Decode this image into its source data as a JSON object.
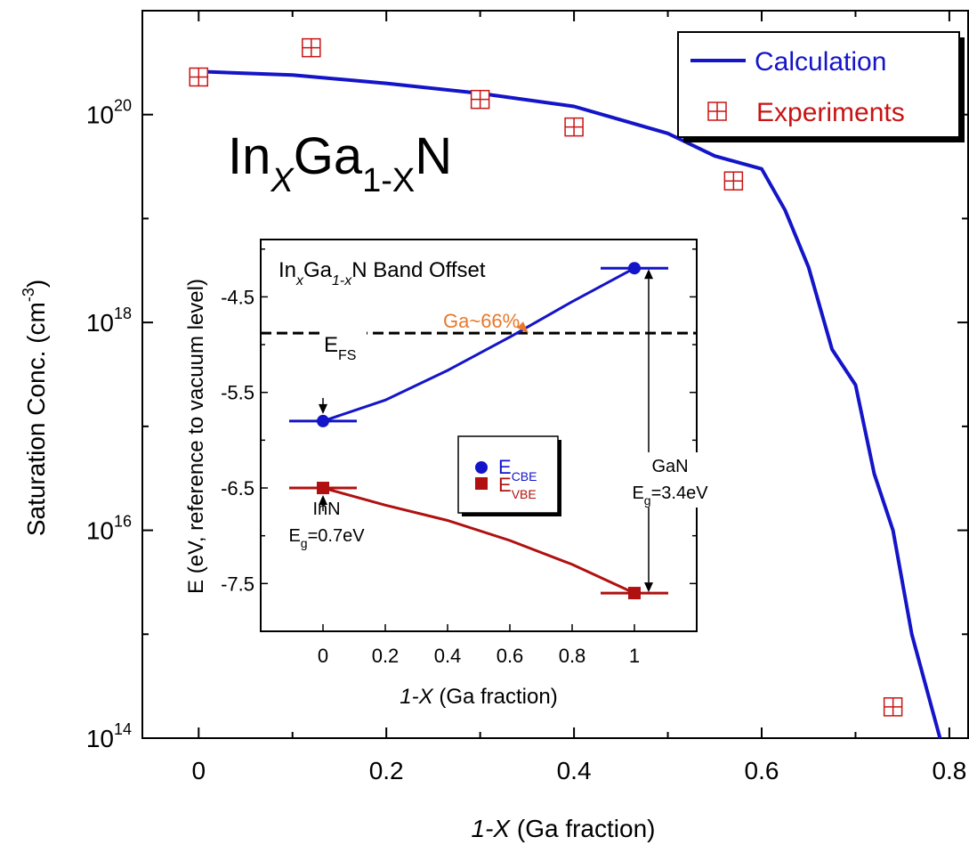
{
  "chart_data": [
    {
      "type": "line",
      "title_main": "In",
      "title_sub1": "X",
      "title_mid": "Ga",
      "title_sub2": "1-X",
      "title_end": "N",
      "xlabel_italic": "1-X",
      "xlabel_rest": " (Ga fraction)",
      "ylabel_main": "Saturation Conc. (cm",
      "ylabel_sup": "-3",
      "ylabel_close": ")",
      "x_scale": "linear",
      "y_scale": "log",
      "xlim": [
        -0.06,
        0.82
      ],
      "ylim": [
        100000000000000.0,
        1e+21
      ],
      "x_ticks": [
        {
          "v": 0,
          "label": "0"
        },
        {
          "v": 0.2,
          "label": "0.2"
        },
        {
          "v": 0.4,
          "label": "0.4"
        },
        {
          "v": 0.6,
          "label": "0.6"
        },
        {
          "v": 0.8,
          "label": "0.8"
        }
      ],
      "y_ticks": [
        {
          "v": 100000000000000.0,
          "base": "10",
          "exp": "14"
        },
        {
          "v": 1e+16,
          "base": "10",
          "exp": "16"
        },
        {
          "v": 1e+18,
          "base": "10",
          "exp": "18"
        },
        {
          "v": 1e+20,
          "base": "10",
          "exp": "20"
        }
      ],
      "legend_position": "top-right",
      "series": [
        {
          "name": "Calculation",
          "style": "line",
          "color": "#1414c8",
          "x": [
            0,
            0.1,
            0.2,
            0.3,
            0.4,
            0.5,
            0.55,
            0.6,
            0.625,
            0.65,
            0.675,
            0.7,
            0.72,
            0.74,
            0.76,
            0.79
          ],
          "y": [
            2.6e+20,
            2.4e+20,
            2e+20,
            1.6e+20,
            1.2e+20,
            6.6e+19,
            4e+19,
            3e+19,
            1.2e+19,
            3.4e+18,
            5.5e+17,
            2.5e+17,
            3.5e+16,
            1e+16,
            1000000000000000.0,
            100000000000000.0
          ]
        },
        {
          "name": "Experiments",
          "style": "marker",
          "color": "#c81414",
          "x": [
            0.0,
            0.12,
            0.3,
            0.4,
            0.57,
            0.74
          ],
          "y": [
            2.3e+20,
            4.4e+20,
            1.4e+20,
            7.6e+19,
            2.3e+19,
            200000000000000.0
          ]
        }
      ]
    },
    {
      "type": "line",
      "title_pre": "In",
      "title_sub1": "x",
      "title_mid": "Ga",
      "title_sub2": "1-x",
      "title_post": "N Band Offset",
      "xlabel_italic": "1-X",
      "xlabel_rest": " (Ga fraction)",
      "ylabel": "E (eV, reference to vacuum level)",
      "x_scale": "linear",
      "xlim": [
        -0.2,
        1.2
      ],
      "ylim": [
        -8.0,
        -3.9
      ],
      "x_ticks": [
        {
          "v": 0,
          "label": "0"
        },
        {
          "v": 0.2,
          "label": "0.2"
        },
        {
          "v": 0.4,
          "label": "0.4"
        },
        {
          "v": 0.6,
          "label": "0.6"
        },
        {
          "v": 0.8,
          "label": "0.8"
        },
        {
          "v": 1.0,
          "label": "1"
        }
      ],
      "y_ticks": [
        {
          "v": -4.5,
          "label": "-4.5"
        },
        {
          "v": -5.5,
          "label": "-5.5"
        },
        {
          "v": -6.5,
          "label": "-6.5"
        },
        {
          "v": -7.5,
          "label": "-7.5"
        }
      ],
      "series": [
        {
          "name": "E_CBE",
          "legend_main": "E",
          "legend_sub": "CBE",
          "color": "#1414c8",
          "x": [
            0,
            0.2,
            0.4,
            0.6,
            0.8,
            1.0
          ],
          "y": [
            -5.8,
            -5.58,
            -5.27,
            -4.92,
            -4.55,
            -4.2
          ]
        },
        {
          "name": "E_VBE",
          "legend_main": "E",
          "legend_sub": "VBE",
          "color": "#b01010",
          "x": [
            0,
            0.2,
            0.4,
            0.6,
            0.8,
            1.0
          ],
          "y": [
            -6.5,
            -6.68,
            -6.84,
            -7.05,
            -7.3,
            -7.6
          ]
        }
      ],
      "efs_value": -4.88,
      "efs_main": "E",
      "efs_sub": "FS",
      "annotations": {
        "crossing_label": "Ga~66%",
        "crossing_color": "#e8782a",
        "inn_label": "InN",
        "inn_eg_main": "E",
        "inn_eg_sub": "g",
        "inn_eg_value": "=0.7eV",
        "gan_label": "GaN",
        "gan_eg_main": "E",
        "gan_eg_sub": "g",
        "gan_eg_value": "=3.4eV"
      }
    }
  ]
}
